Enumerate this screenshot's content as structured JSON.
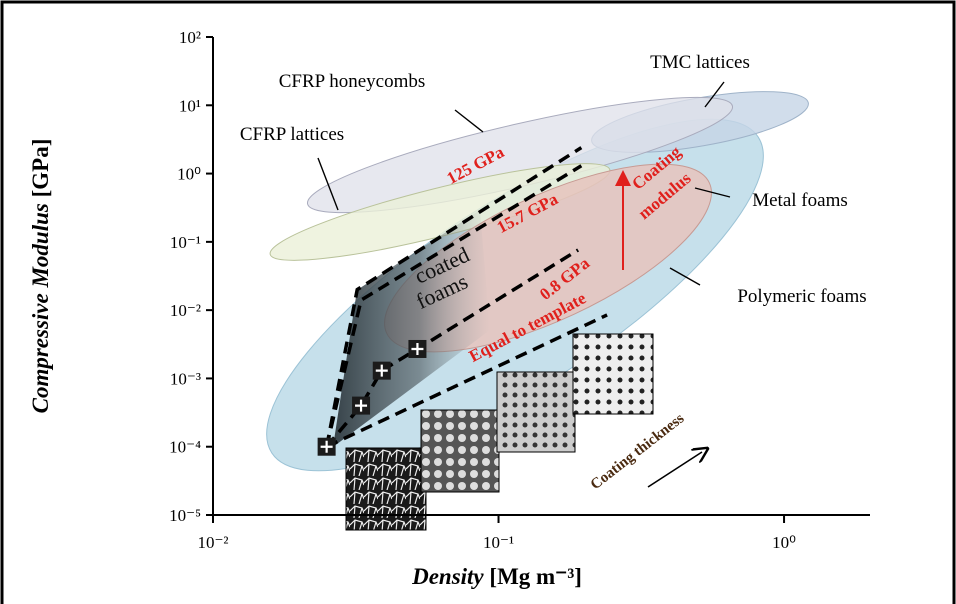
{
  "chart_data": {
    "type": "scatter",
    "x_label": "Density",
    "x_label_unit": "[Mg m⁻³]",
    "y_label": "Compressive Modulus",
    "y_label_unit": "[GPa]",
    "xscale": "log",
    "yscale": "log",
    "xlim": [
      0.01,
      2
    ],
    "ylim": [
      1e-05,
      100
    ],
    "xticks": [
      {
        "value": 0.01,
        "label": "10⁻²"
      },
      {
        "value": 0.1,
        "label": "10⁻¹"
      },
      {
        "value": 1,
        "label": "10⁰"
      }
    ],
    "yticks": [
      {
        "value": 1e-05,
        "label": "10⁻⁵"
      },
      {
        "value": 0.0001,
        "label": "10⁻⁴"
      },
      {
        "value": 0.001,
        "label": "10⁻³"
      },
      {
        "value": 0.01,
        "label": "10⁻²"
      },
      {
        "value": 0.1,
        "label": "10⁻¹"
      },
      {
        "value": 1,
        "label": "10⁰"
      },
      {
        "value": 10,
        "label": "10¹"
      },
      {
        "value": 100,
        "label": "10²"
      }
    ],
    "points": {
      "x": [
        0.025,
        0.033,
        0.039,
        0.052
      ],
      "values": [
        0.0001,
        0.0004,
        0.0013,
        0.0027
      ]
    },
    "series": [
      {
        "name": "125 GPa",
        "color": "#e0201c",
        "x": [
          0.025,
          0.032,
          0.195
        ],
        "values": [
          0.0001,
          0.02,
          2.4
        ]
      },
      {
        "name": "15.7 GPa",
        "color": "#e0201c",
        "x": [
          0.025,
          0.033,
          0.195
        ],
        "values": [
          0.0001,
          0.014,
          1.3
        ]
      },
      {
        "name": "0.8 GPa",
        "color": "#e0201c",
        "x": [
          0.025,
          0.033,
          0.039,
          0.052,
          0.19
        ],
        "values": [
          0.0001,
          0.0004,
          0.0013,
          0.0027,
          0.076
        ]
      },
      {
        "name": "Equal to template",
        "color": "#e0201c",
        "x": [
          0.025,
          0.24
        ],
        "values": [
          0.0001,
          0.0085
        ]
      }
    ],
    "annotations": [
      "CFRP honeycombs",
      "TMC lattices",
      "CFRP lattices",
      "Metal foams",
      "Polymeric foams",
      "coated",
      "foams",
      "Coating",
      "modulus",
      "Coating thickness"
    ]
  }
}
